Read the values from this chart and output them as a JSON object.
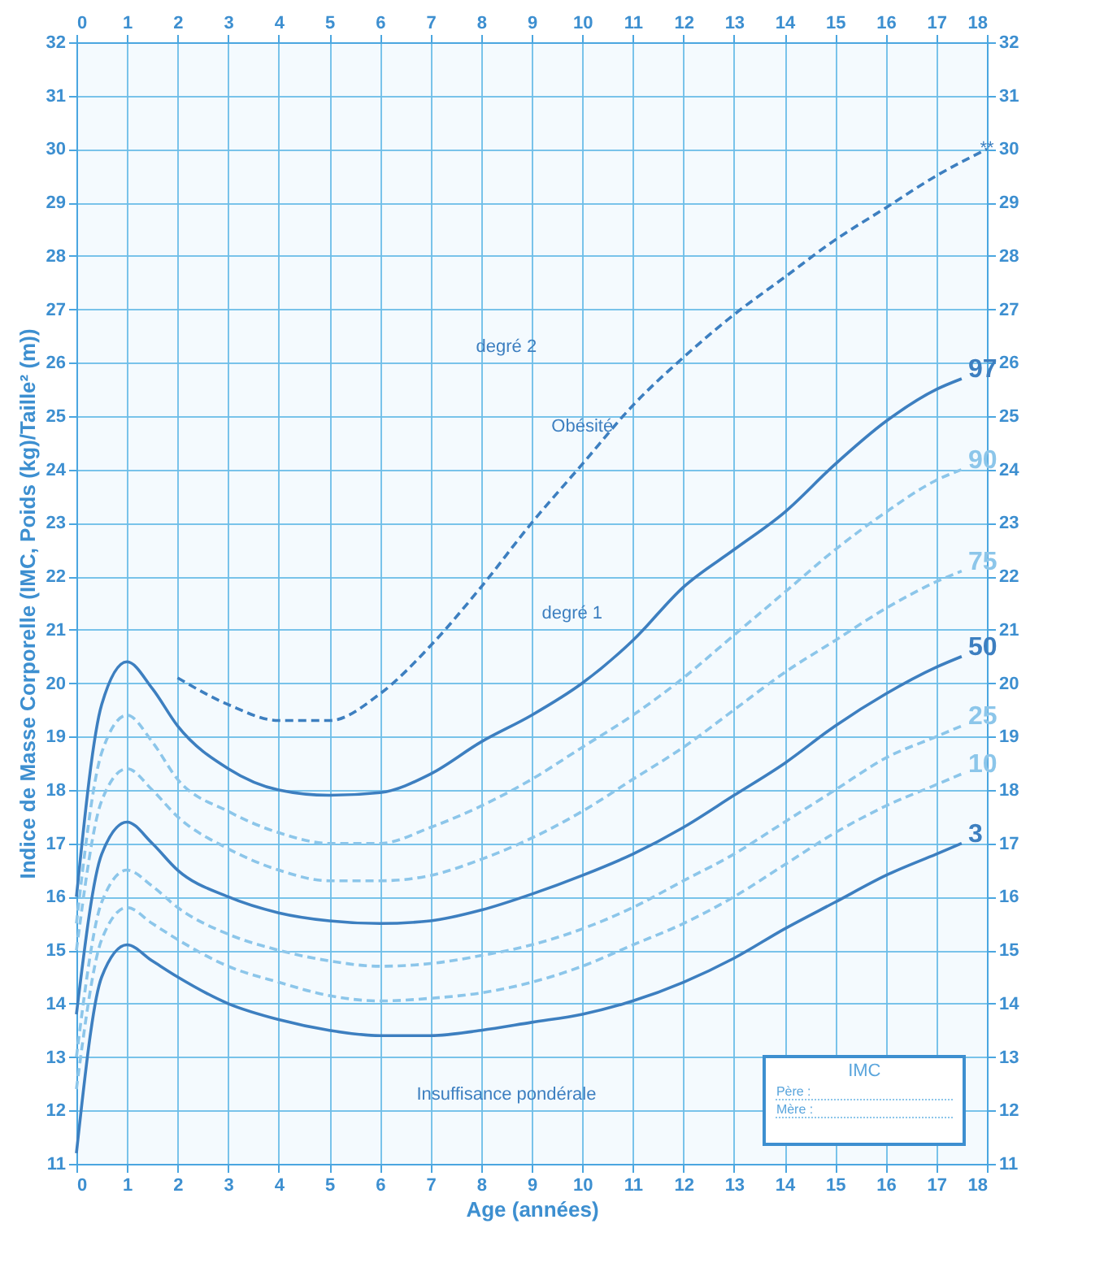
{
  "chart_data": {
    "type": "line",
    "xlabel": "Age (années)",
    "ylabel": "Indice de Masse Corporelle (IMC, Poids (kg)/Taille² (m))",
    "xlim": [
      0,
      18
    ],
    "xticks": [
      0,
      1,
      2,
      3,
      4,
      5,
      6,
      7,
      8,
      9,
      10,
      11,
      12,
      13,
      14,
      15,
      16,
      17,
      18
    ],
    "x2lim": [
      0,
      18
    ],
    "x2ticks": [
      0,
      1,
      2,
      3,
      4,
      5,
      6,
      7,
      8,
      9,
      10,
      11,
      12,
      13,
      14,
      15,
      16,
      17,
      18
    ],
    "ylim": [
      11,
      32
    ],
    "yticks": [
      11,
      12,
      13,
      14,
      15,
      16,
      17,
      18,
      19,
      20,
      21,
      22,
      23,
      24,
      25,
      26,
      27,
      28,
      29,
      30,
      31,
      32
    ],
    "y2lim": [
      11,
      32
    ],
    "y2ticks": [
      11,
      12,
      13,
      14,
      15,
      16,
      17,
      18,
      19,
      20,
      21,
      22,
      23,
      24,
      25,
      26,
      27,
      28,
      29,
      30,
      31,
      32
    ],
    "grid": true,
    "legend": false,
    "marker": "none",
    "series": [
      {
        "name": "97",
        "color": "#3d7fc0",
        "line_style": "solid",
        "x": [
          0,
          0.5,
          1,
          1.5,
          2,
          3,
          4,
          5,
          6,
          7,
          8,
          9,
          10,
          11,
          12,
          13,
          14,
          15,
          16,
          17,
          17.5
        ],
        "values": [
          16.0,
          19.6,
          20.4,
          19.9,
          19.2,
          18.4,
          18.0,
          17.9,
          17.95,
          18.3,
          18.9,
          19.4,
          20.0,
          20.8,
          21.8,
          22.5,
          23.2,
          24.1,
          24.9,
          25.5,
          25.7
        ]
      },
      {
        "name": "90",
        "color": "#8cc6ea",
        "line_style": "dashed",
        "x": [
          0,
          0.5,
          1,
          1.5,
          2,
          3,
          4,
          5,
          6,
          7,
          8,
          9,
          10,
          11,
          12,
          13,
          14,
          15,
          16,
          17,
          17.5
        ],
        "values": [
          15.5,
          18.7,
          19.4,
          18.9,
          18.2,
          17.6,
          17.2,
          17.0,
          17.0,
          17.3,
          17.7,
          18.2,
          18.8,
          19.4,
          20.1,
          20.9,
          21.7,
          22.5,
          23.2,
          23.8,
          24.0
        ]
      },
      {
        "name": "75",
        "color": "#8cc6ea",
        "line_style": "dashed",
        "x": [
          0,
          0.5,
          1,
          1.5,
          2,
          3,
          4,
          5,
          6,
          7,
          8,
          9,
          10,
          11,
          12,
          13,
          14,
          15,
          16,
          17,
          17.5
        ],
        "values": [
          15.0,
          17.8,
          18.4,
          18.0,
          17.5,
          16.9,
          16.5,
          16.3,
          16.3,
          16.4,
          16.7,
          17.1,
          17.6,
          18.2,
          18.8,
          19.5,
          20.2,
          20.8,
          21.4,
          21.9,
          22.1
        ]
      },
      {
        "name": "50",
        "color": "#3d7fc0",
        "line_style": "solid",
        "x": [
          0,
          0.5,
          1,
          1.5,
          2,
          3,
          4,
          5,
          6,
          7,
          8,
          9,
          10,
          11,
          12,
          13,
          14,
          15,
          16,
          17,
          17.5
        ],
        "values": [
          13.8,
          16.8,
          17.4,
          17.0,
          16.5,
          16.0,
          15.7,
          15.55,
          15.5,
          15.55,
          15.75,
          16.05,
          16.4,
          16.8,
          17.3,
          17.9,
          18.5,
          19.2,
          19.8,
          20.3,
          20.5
        ]
      },
      {
        "name": "25",
        "color": "#8cc6ea",
        "line_style": "dashed",
        "x": [
          0,
          0.5,
          1,
          1.5,
          2,
          3,
          4,
          5,
          6,
          7,
          8,
          9,
          10,
          11,
          12,
          13,
          14,
          15,
          16,
          17,
          17.5
        ],
        "values": [
          13.0,
          15.9,
          16.5,
          16.2,
          15.8,
          15.3,
          15.0,
          14.8,
          14.7,
          14.75,
          14.9,
          15.1,
          15.4,
          15.8,
          16.3,
          16.8,
          17.4,
          18.0,
          18.6,
          19.0,
          19.2
        ]
      },
      {
        "name": "10",
        "color": "#8cc6ea",
        "line_style": "dashed",
        "x": [
          0,
          0.5,
          1,
          1.5,
          2,
          3,
          4,
          5,
          6,
          7,
          8,
          9,
          10,
          11,
          12,
          13,
          14,
          15,
          16,
          17,
          17.5
        ],
        "values": [
          12.4,
          15.2,
          15.8,
          15.5,
          15.2,
          14.7,
          14.4,
          14.15,
          14.05,
          14.1,
          14.2,
          14.4,
          14.7,
          15.1,
          15.5,
          16.0,
          16.6,
          17.2,
          17.7,
          18.1,
          18.3
        ]
      },
      {
        "name": "3",
        "color": "#3d7fc0",
        "line_style": "solid",
        "x": [
          0,
          0.5,
          1,
          1.5,
          2,
          3,
          4,
          5,
          6,
          7,
          8,
          9,
          10,
          11,
          12,
          13,
          14,
          15,
          16,
          17,
          17.5
        ],
        "values": [
          11.2,
          14.5,
          15.1,
          14.8,
          14.5,
          14.0,
          13.7,
          13.5,
          13.4,
          13.4,
          13.5,
          13.65,
          13.8,
          14.05,
          14.4,
          14.85,
          15.4,
          15.9,
          16.4,
          16.8,
          17.0
        ]
      },
      {
        "color": "#3d7fc0",
        "line_style": "dashed",
        "x": [
          2,
          3,
          4,
          5,
          6,
          7,
          8,
          9,
          10,
          11,
          12,
          13,
          14,
          15,
          16,
          17,
          18
        ],
        "values": [
          20.1,
          19.6,
          19.3,
          19.3,
          19.8,
          20.7,
          21.8,
          23.0,
          24.1,
          25.2,
          26.1,
          26.9,
          27.6,
          28.3,
          28.9,
          29.5,
          30.0
        ]
      }
    ],
    "annotations": [
      "degré 2",
      "Obésité",
      "degré 1",
      "Insuffisance pondérale",
      {
        "text": "**",
        "x": 18,
        "y": 30
      },
      "IMC",
      "Père :",
      "Mère :"
    ]
  }
}
